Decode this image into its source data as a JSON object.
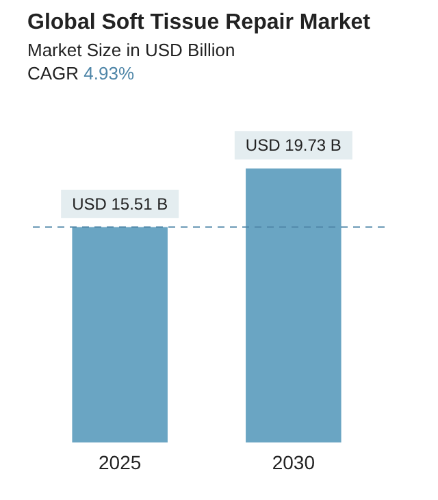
{
  "chart_data": {
    "type": "bar",
    "title": "Global Soft Tissue Repair Market",
    "subtitle": "Market Size in USD Billion",
    "annotations": [
      "CAGR 4.93%"
    ],
    "categories": [
      "2025",
      "2030"
    ],
    "values": [
      15.51,
      19.73
    ],
    "color": "#6aa5c3",
    "value_labels": [
      "USD 15.51 B",
      "USD 19.73 B"
    ],
    "ref_lines": [
      {
        "axis": "y",
        "value": 15.51,
        "label": null,
        "color": "#4f86a8",
        "line_style": "dashed"
      }
    ]
  }
}
